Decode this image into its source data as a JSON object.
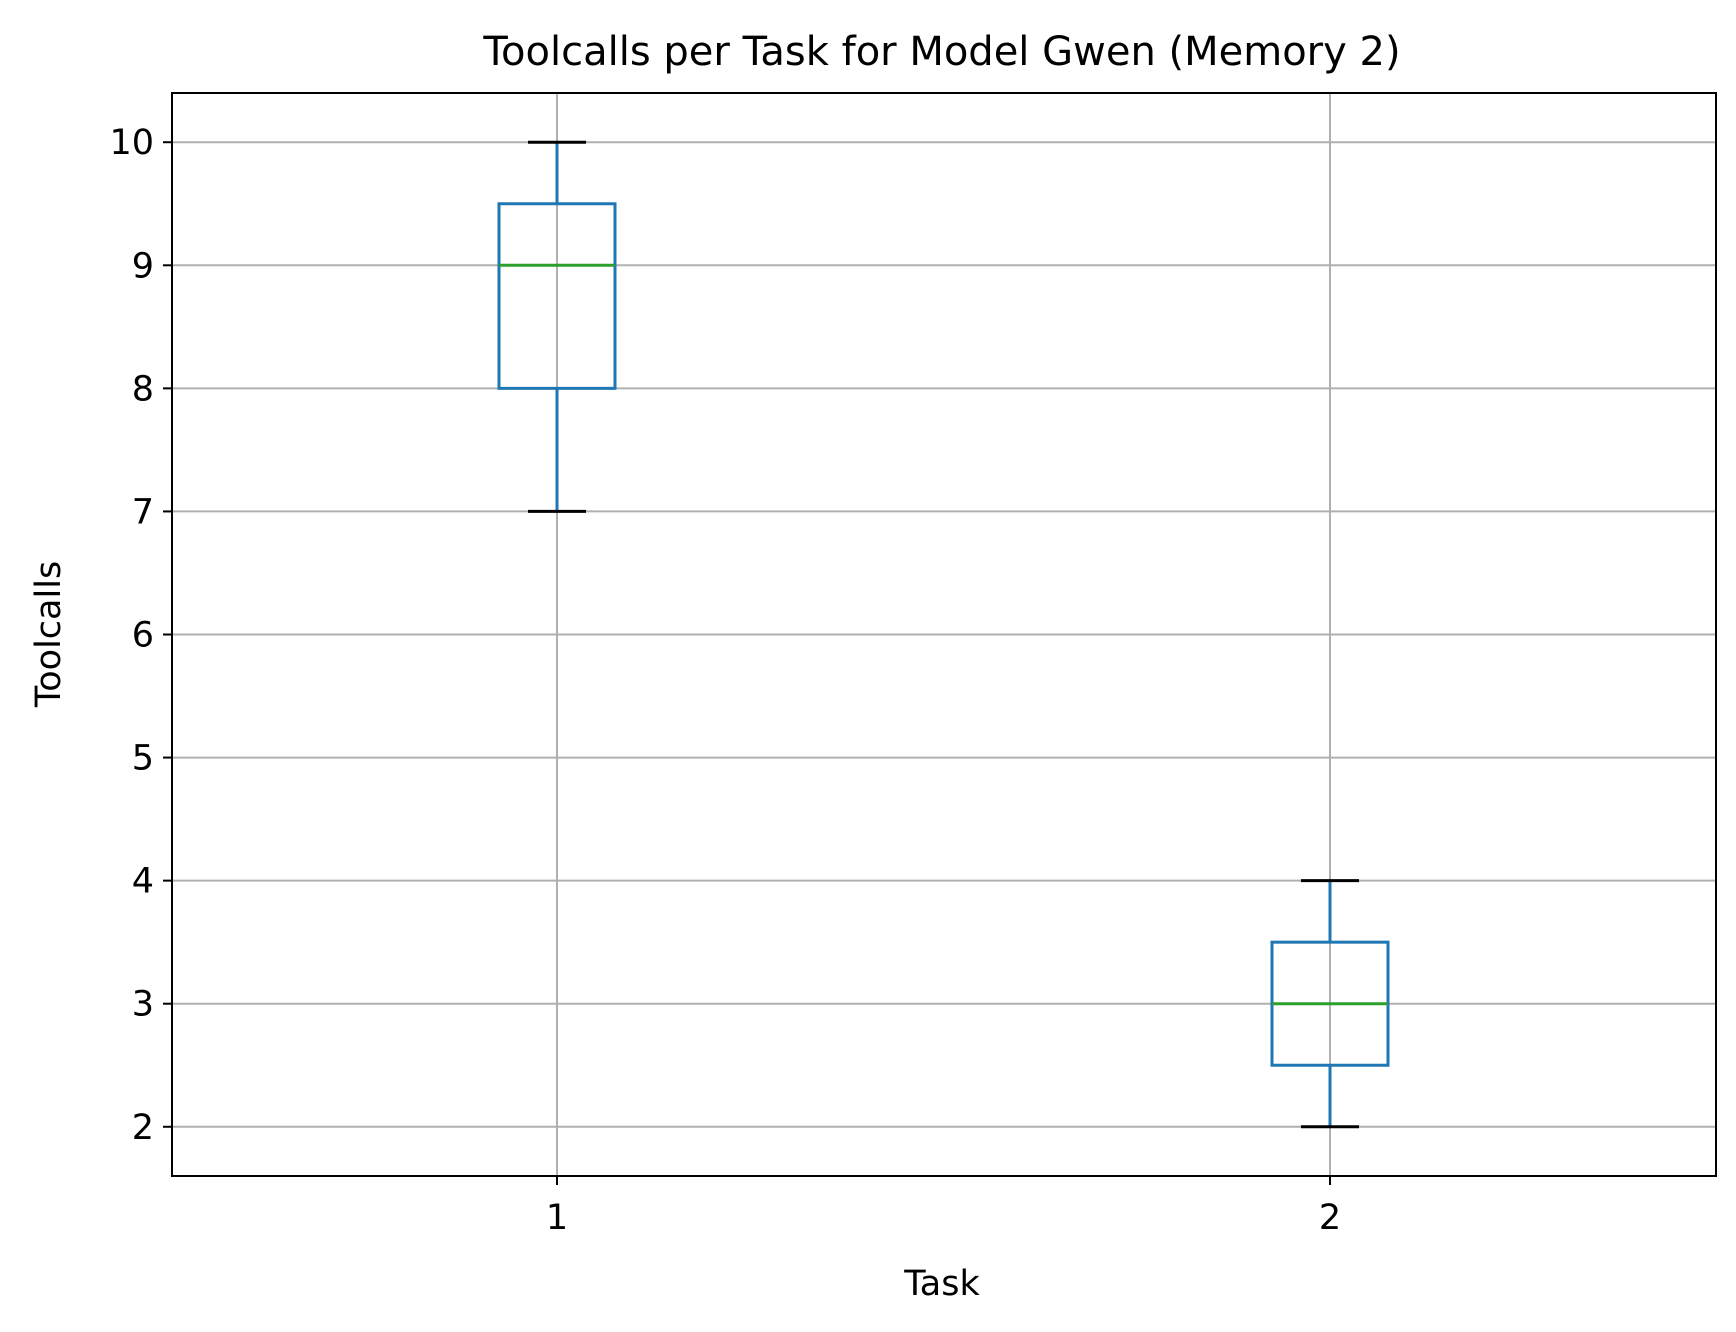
{
  "chart_data": {
    "type": "box",
    "title": "Toolcalls per Task for Model Gwen (Memory 2)",
    "xlabel": "Task",
    "ylabel": "Toolcalls",
    "categories": [
      "1",
      "2"
    ],
    "boxes": [
      {
        "category": "1",
        "whisker_low": 7,
        "q1": 8,
        "median": 9,
        "q3": 9.5,
        "whisker_high": 10
      },
      {
        "category": "2",
        "whisker_low": 2,
        "q1": 2.5,
        "median": 3,
        "q3": 3.5,
        "whisker_high": 4
      }
    ],
    "ylim": [
      1.6,
      10.4
    ],
    "yticks": [
      2,
      3,
      4,
      5,
      6,
      7,
      8,
      9,
      10
    ],
    "grid": true,
    "colors": {
      "box": "#1f77b4",
      "median": "#2ca02c",
      "whisker_cap": "#000000",
      "grid": "#b0b0b0"
    }
  }
}
